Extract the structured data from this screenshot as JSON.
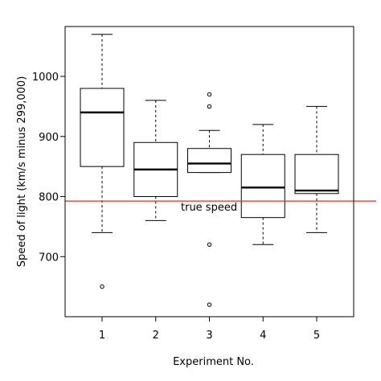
{
  "chart_data": {
    "type": "boxplot",
    "title": "",
    "xlabel": "Experiment No.",
    "ylabel": "Speed of light (km/s minus 299,000)",
    "ylim": [
      600,
      1083
    ],
    "yticks": [
      700,
      800,
      900,
      1000
    ],
    "grid": false,
    "categories": [
      "1",
      "2",
      "3",
      "4",
      "5"
    ],
    "boxes": [
      {
        "category": "1",
        "whisker_low": 740,
        "q1": 850,
        "median": 940,
        "q3": 980,
        "whisker_high": 1070,
        "outliers": [
          650
        ]
      },
      {
        "category": "2",
        "whisker_low": 760,
        "q1": 800,
        "median": 845,
        "q3": 890,
        "whisker_high": 960,
        "outliers": []
      },
      {
        "category": "3",
        "whisker_low": 840,
        "q1": 840,
        "median": 855,
        "q3": 880,
        "whisker_high": 910,
        "outliers": [
          620,
          720,
          950,
          970
        ]
      },
      {
        "category": "4",
        "whisker_low": 720,
        "q1": 765,
        "median": 815,
        "q3": 870,
        "whisker_high": 920,
        "outliers": []
      },
      {
        "category": "5",
        "whisker_low": 740,
        "q1": 805,
        "median": 810,
        "q3": 870,
        "whisker_high": 950,
        "outliers": []
      }
    ],
    "reference_line": {
      "value": 792.458,
      "label": "true speed",
      "color": "#e03030"
    }
  }
}
